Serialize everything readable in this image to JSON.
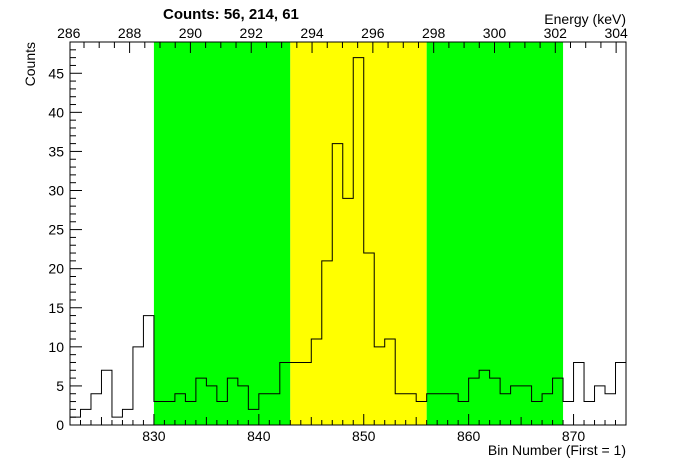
{
  "chart_data": {
    "type": "histogram",
    "title": "Counts:   56,   214,   61",
    "xlabel": "Bin Number (First = 1)",
    "ylabel": "Counts",
    "x2label": "Energy (keV)",
    "xlim": [
      822,
      875
    ],
    "ylim": [
      0,
      49
    ],
    "x_ticks": [
      830,
      840,
      850,
      860,
      870
    ],
    "y_ticks": [
      0,
      5,
      10,
      15,
      20,
      25,
      30,
      35,
      40,
      45
    ],
    "x2_ticks": [
      286,
      288,
      290,
      292,
      294,
      296,
      298,
      300,
      302,
      304
    ],
    "energy_calibration": {
      "bin_a": 830,
      "keV_a": 288.8,
      "bin_b": 870,
      "keV_b": 302.6
    },
    "regions": [
      {
        "start": 830,
        "end": 843,
        "color": "#00ff00"
      },
      {
        "start": 843,
        "end": 856,
        "color": "#ffff00"
      },
      {
        "start": 856,
        "end": 869,
        "color": "#00ff00"
      }
    ],
    "bins": [
      822,
      823,
      824,
      825,
      826,
      827,
      828,
      829,
      830,
      831,
      832,
      833,
      834,
      835,
      836,
      837,
      838,
      839,
      840,
      841,
      842,
      843,
      844,
      845,
      846,
      847,
      848,
      849,
      850,
      851,
      852,
      853,
      854,
      855,
      856,
      857,
      858,
      859,
      860,
      861,
      862,
      863,
      864,
      865,
      866,
      867,
      868,
      869,
      870,
      871,
      872,
      873,
      874
    ],
    "counts": [
      1,
      2,
      4,
      7,
      1,
      2,
      10,
      14,
      3,
      3,
      4,
      3,
      6,
      5,
      3,
      6,
      5,
      2,
      4,
      4,
      8,
      8,
      8,
      11,
      21,
      36,
      29,
      47,
      22,
      10,
      11,
      4,
      4,
      3,
      4,
      4,
      4,
      3,
      6,
      7,
      6,
      4,
      5,
      5,
      3,
      4,
      6,
      3,
      8,
      3,
      5,
      4,
      8
    ]
  }
}
